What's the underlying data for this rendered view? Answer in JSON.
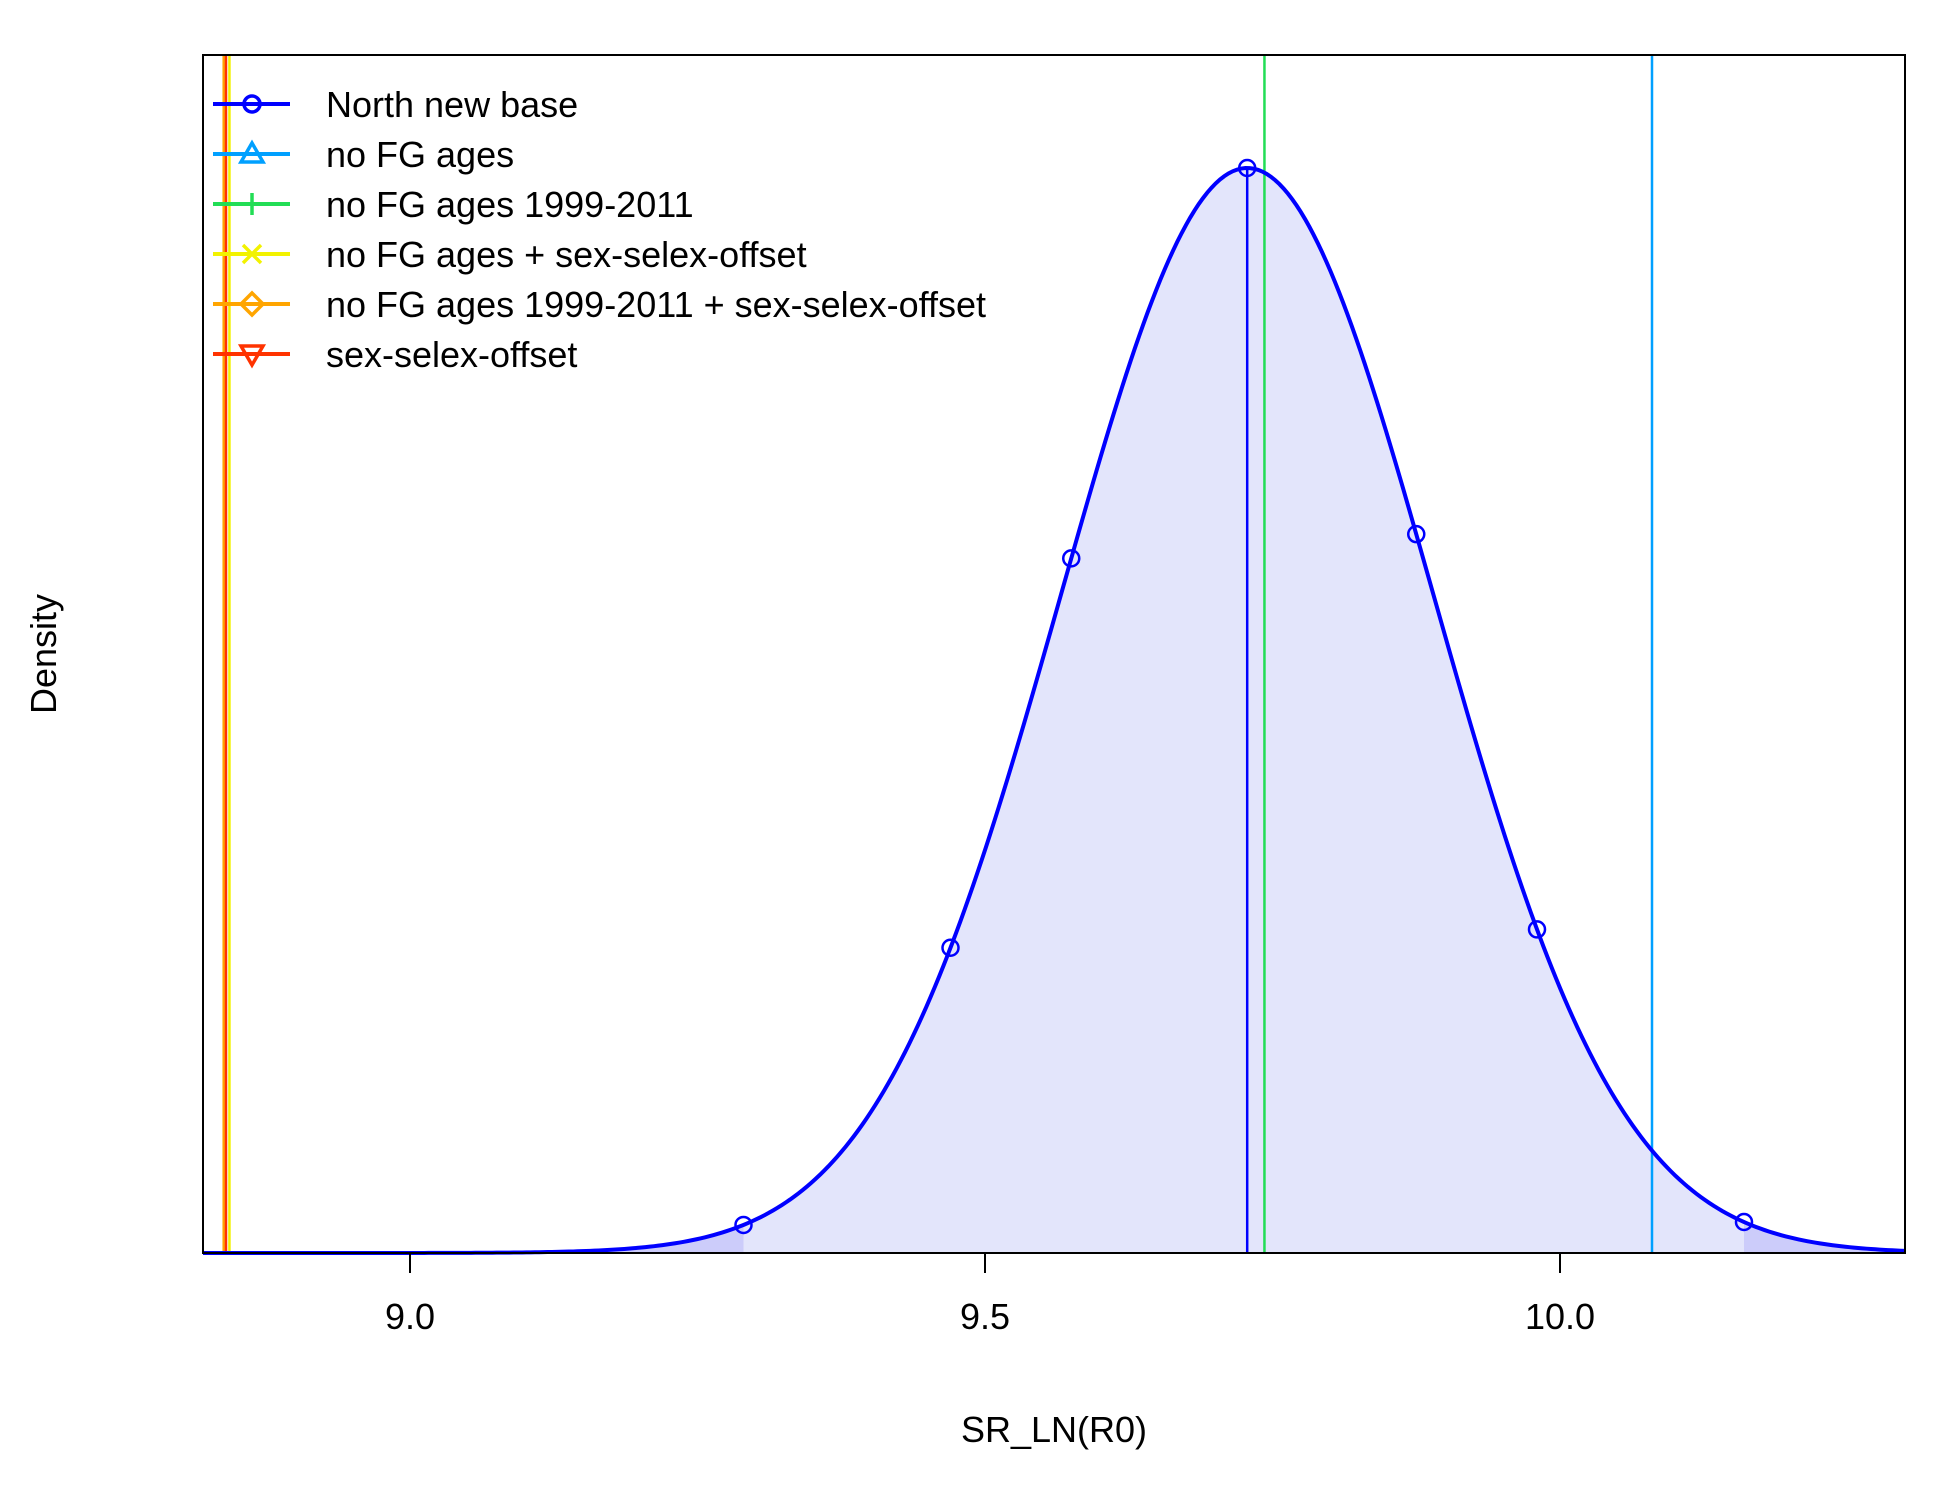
{
  "chart_data": {
    "type": "area",
    "title": "",
    "xlabel": "SR_LN(R0)",
    "ylabel": "Density",
    "xlim": [
      8.82,
      10.3
    ],
    "ylim": [
      0,
      1.0
    ],
    "x_ticks": [
      "9.0",
      "9.5",
      "10.0"
    ],
    "x_tick_values": [
      9.0,
      9.5,
      10.0
    ],
    "legend_position": "top-left",
    "series": [
      {
        "name": "North new base",
        "color": "#0000FF",
        "marker": "circle",
        "density": {
          "distribution": "normal",
          "mean": 9.728,
          "sd": 0.162
        },
        "marker_x": [
          9.29,
          9.47,
          9.575,
          9.728,
          9.875,
          9.98,
          10.16
        ],
        "interval_95": [
          9.29,
          10.16
        ],
        "estimate": 9.728
      },
      {
        "name": "no FG ages",
        "color": "#00A0FF",
        "marker": "triangle",
        "estimate": 10.08
      },
      {
        "name": "no FG ages 1999-2011",
        "color": "#22DD55",
        "marker": "plus",
        "estimate": 9.743
      },
      {
        "name": "no FG ages + sex-selex-offset",
        "color": "#F2F200",
        "marker": "x",
        "estimate": 8.843
      },
      {
        "name": "no FG ages 1999-2011 + sex-selex-offset",
        "color": "#FFA500",
        "marker": "diamond",
        "estimate": 8.838
      },
      {
        "name": "sex-selex-offset",
        "color": "#FF3300",
        "marker": "triangle-down",
        "estimate": 8.84
      }
    ]
  }
}
